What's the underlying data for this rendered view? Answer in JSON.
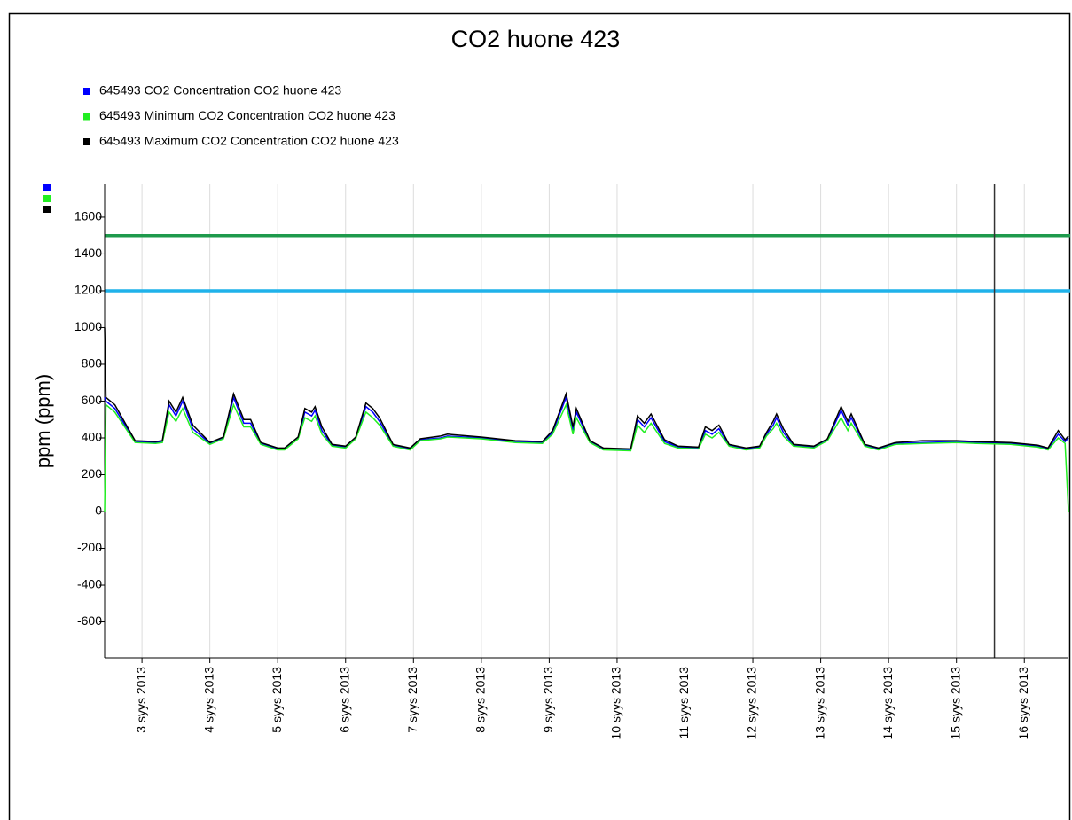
{
  "chart_data": {
    "type": "line",
    "title": "CO2 huone 423",
    "y_label": "ppm (ppm)",
    "xlim": [
      2.45,
      16.65
    ],
    "ylim": [
      -795,
      1778
    ],
    "xticks": [
      {
        "value": 3,
        "label": "3 syys 2013"
      },
      {
        "value": 4,
        "label": "4 syys 2013"
      },
      {
        "value": 5,
        "label": "5 syys 2013"
      },
      {
        "value": 6,
        "label": "6 syys 2013"
      },
      {
        "value": 7,
        "label": "7 syys 2013"
      },
      {
        "value": 8,
        "label": "8 syys 2013"
      },
      {
        "value": 9,
        "label": "9 syys 2013"
      },
      {
        "value": 10,
        "label": "10 syys 2013"
      },
      {
        "value": 11,
        "label": "11 syys 2013"
      },
      {
        "value": 12,
        "label": "12 syys 2013"
      },
      {
        "value": 13,
        "label": "13 syys 2013"
      },
      {
        "value": 14,
        "label": "14 syys 2013"
      },
      {
        "value": 15,
        "label": "15 syys 2013"
      },
      {
        "value": 16,
        "label": "16 syys 2013"
      }
    ],
    "yticks": [
      1600,
      1400,
      1200,
      1000,
      800,
      600,
      400,
      200,
      0,
      -200,
      -400,
      -600
    ],
    "grid": "x",
    "reference_lines": [
      {
        "value": 1500,
        "color": "#1e9a4c"
      },
      {
        "value": 1200,
        "color": "#1fb2ea"
      }
    ],
    "cursor_x": 15.56,
    "x": [
      2.45,
      2.47,
      2.6,
      2.9,
      3.2,
      3.3,
      3.4,
      3.5,
      3.6,
      3.75,
      4.0,
      4.2,
      4.35,
      4.5,
      4.6,
      4.75,
      5.0,
      5.1,
      5.3,
      5.4,
      5.5,
      5.55,
      5.65,
      5.8,
      6.0,
      6.15,
      6.3,
      6.4,
      6.5,
      6.7,
      6.95,
      7.1,
      7.4,
      7.5,
      8.0,
      8.5,
      8.9,
      9.05,
      9.25,
      9.35,
      9.4,
      9.6,
      9.8,
      10.2,
      10.3,
      10.4,
      10.5,
      10.7,
      10.9,
      11.2,
      11.3,
      11.4,
      11.5,
      11.65,
      11.9,
      12.1,
      12.2,
      12.3,
      12.35,
      12.45,
      12.6,
      12.9,
      13.1,
      13.3,
      13.4,
      13.45,
      13.65,
      13.85,
      14.1,
      14.5,
      15.0,
      15.3,
      15.8,
      16.2,
      16.35,
      16.5,
      16.6,
      16.65
    ],
    "series": [
      {
        "name": "645493  CO2 Concentration CO2 huone 423",
        "color": "#0000ff",
        "values": [
          620,
          600,
          560,
          380,
          375,
          380,
          580,
          520,
          600,
          450,
          370,
          400,
          620,
          480,
          480,
          370,
          340,
          340,
          400,
          540,
          520,
          550,
          440,
          360,
          350,
          400,
          570,
          540,
          490,
          360,
          340,
          390,
          400,
          410,
          400,
          380,
          375,
          430,
          620,
          440,
          540,
          380,
          340,
          335,
          500,
          460,
          510,
          380,
          350,
          345,
          440,
          420,
          450,
          360,
          340,
          350,
          420,
          470,
          510,
          430,
          360,
          350,
          390,
          550,
          470,
          510,
          360,
          340,
          370,
          375,
          380,
          375,
          370,
          355,
          340,
          420,
          380,
          400
        ]
      },
      {
        "name": "645493  Minimum CO2 Concentration CO2 huone 423",
        "color": "#22ee22",
        "values": [
          0,
          580,
          540,
          375,
          370,
          375,
          540,
          490,
          560,
          430,
          365,
          395,
          580,
          460,
          460,
          365,
          335,
          335,
          395,
          510,
          490,
          520,
          420,
          355,
          345,
          395,
          540,
          510,
          470,
          355,
          335,
          385,
          395,
          405,
          395,
          375,
          370,
          420,
          580,
          420,
          510,
          375,
          335,
          330,
          470,
          430,
          480,
          370,
          345,
          340,
          420,
          400,
          430,
          355,
          335,
          345,
          410,
          450,
          480,
          410,
          355,
          345,
          385,
          510,
          440,
          480,
          355,
          335,
          365,
          370,
          375,
          370,
          365,
          350,
          335,
          400,
          370,
          0
        ]
      },
      {
        "name": "645493  Maximum CO2 Concentration CO2 huone 423",
        "color": "#000000",
        "values": [
          1000,
          620,
          580,
          385,
          380,
          385,
          600,
          540,
          620,
          470,
          375,
          405,
          640,
          500,
          500,
          375,
          345,
          345,
          405,
          560,
          540,
          570,
          460,
          365,
          355,
          405,
          590,
          560,
          510,
          365,
          345,
          395,
          410,
          420,
          405,
          385,
          380,
          440,
          640,
          460,
          560,
          385,
          345,
          340,
          520,
          480,
          530,
          390,
          355,
          350,
          460,
          440,
          470,
          365,
          345,
          355,
          430,
          490,
          530,
          450,
          365,
          355,
          395,
          570,
          490,
          530,
          365,
          345,
          375,
          385,
          385,
          380,
          375,
          360,
          345,
          440,
          390,
          410
        ]
      }
    ]
  }
}
